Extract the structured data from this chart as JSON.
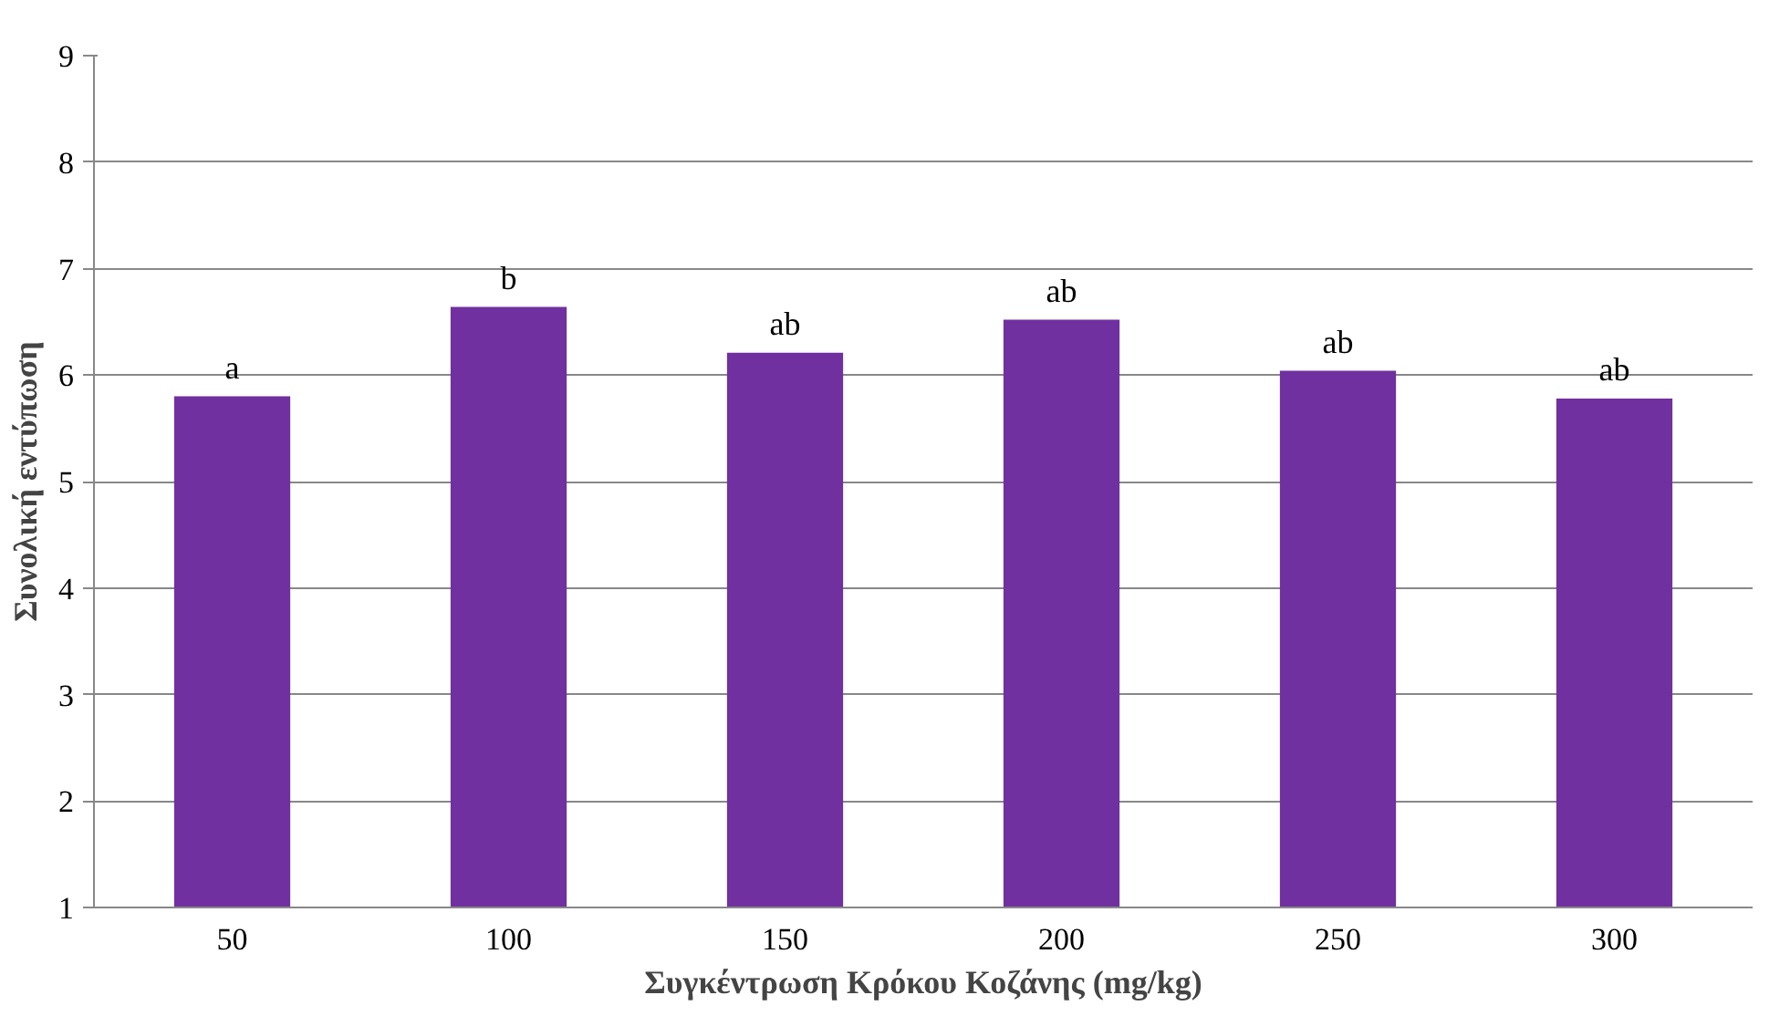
{
  "chart_data": {
    "type": "bar",
    "xlabel": "Συγκέντρωση Κρόκου Κοζάνης (mg/kg)",
    "ylabel": "Συνολική εντύπωση",
    "categories": [
      "50",
      "100",
      "150",
      "200",
      "250",
      "300"
    ],
    "values": [
      5.8,
      6.64,
      6.21,
      6.52,
      6.04,
      5.78
    ],
    "color": "#7030a0",
    "ylim": [
      1,
      9
    ],
    "yticks": [
      1,
      2,
      3,
      4,
      5,
      6,
      7,
      8,
      9
    ],
    "grid": "y",
    "annotations": [
      {
        "text": "a",
        "x": "50",
        "y": 5.8
      },
      {
        "text": "b",
        "x": "100",
        "y": 6.64
      },
      {
        "text": "ab",
        "x": "150",
        "y": 6.21
      },
      {
        "text": "ab",
        "x": "200",
        "y": 6.52
      },
      {
        "text": "ab",
        "x": "250",
        "y": 6.04
      },
      {
        "text": "ab",
        "x": "300",
        "y": 5.78
      }
    ]
  }
}
